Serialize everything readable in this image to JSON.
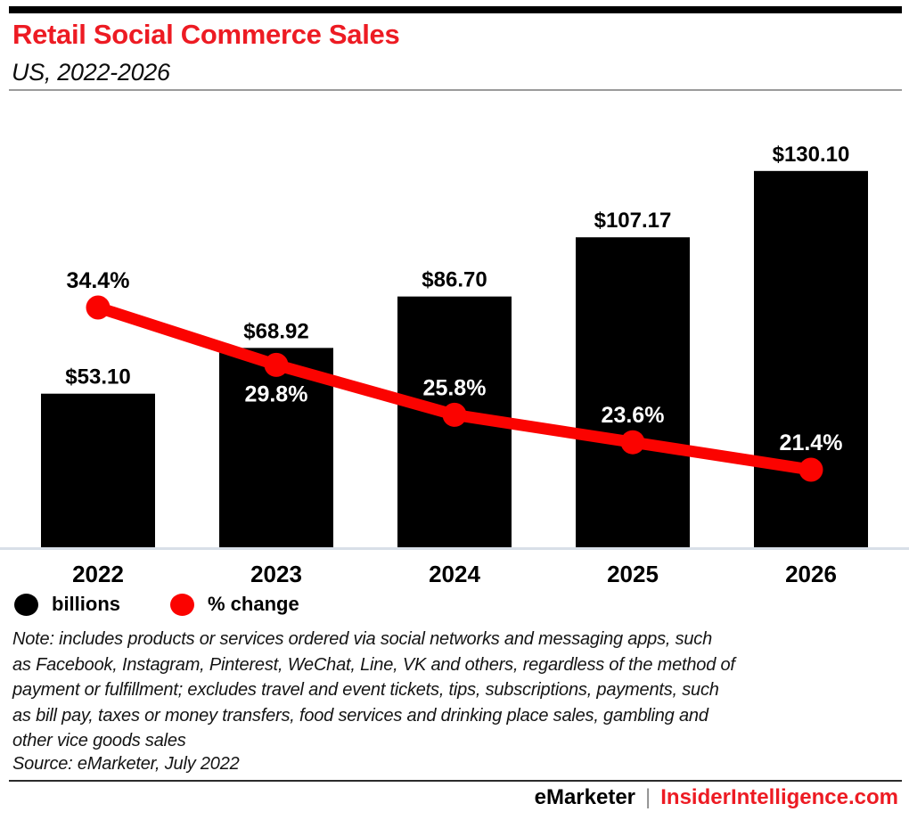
{
  "header": {
    "title": "Retail Social Commerce Sales",
    "subtitle": "US, 2022-2026"
  },
  "colors": {
    "accent_red": "#ed1b23",
    "line_red": "#fb0300",
    "bar_black": "#000000",
    "axis_line": "#d8dfe8"
  },
  "chart_data": {
    "type": "bar",
    "categories": [
      "2022",
      "2023",
      "2024",
      "2025",
      "2026"
    ],
    "series": [
      {
        "name": "billions",
        "type": "bar",
        "values": [
          53.1,
          68.92,
          86.7,
          107.17,
          130.1
        ],
        "labels": [
          "$53.10",
          "$68.92",
          "$86.70",
          "$107.17",
          "$130.10"
        ],
        "color": "#000000"
      },
      {
        "name": "% change",
        "type": "line",
        "values": [
          34.4,
          29.8,
          25.8,
          23.6,
          21.4
        ],
        "labels": [
          "34.4%",
          "29.8%",
          "25.8%",
          "23.6%",
          "21.4%"
        ],
        "color": "#fb0300",
        "label_sides": [
          "above",
          "below",
          "above",
          "above",
          "above"
        ],
        "label_colors": [
          "#000000",
          "#ffffff",
          "#ffffff",
          "#ffffff",
          "#ffffff"
        ]
      }
    ],
    "xlabel": "",
    "ylabel": "",
    "grid": false,
    "legend_position": "bottom-left"
  },
  "legend": {
    "items": [
      {
        "label": "billions",
        "color": "#000000"
      },
      {
        "label": "% change",
        "color": "#fb0300"
      }
    ]
  },
  "footnote": {
    "note_lines": [
      "Note: includes products or services ordered via social networks and messaging apps, such",
      "as Facebook, Instagram, Pinterest, WeChat, Line, VK and others, regardless of the method of",
      "payment or fulfillment; excludes travel and event tickets, tips, subscriptions, payments, such",
      "as bill pay, taxes or money transfers, food services and drinking place sales, gambling and",
      "other vice goods sales"
    ],
    "source": "Source: eMarketer, July 2022"
  },
  "footer": {
    "brand": "eMarketer",
    "separator": "|",
    "site": "InsiderIntelligence.com"
  }
}
